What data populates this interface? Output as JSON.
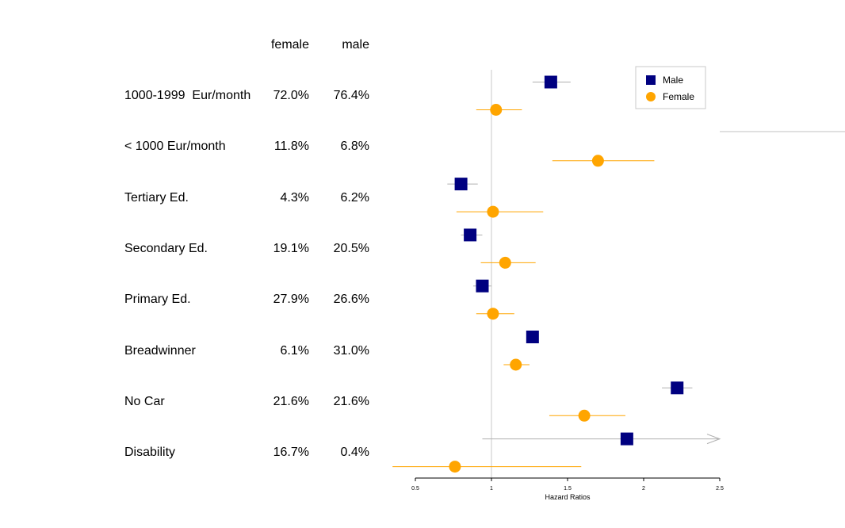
{
  "columns": {
    "female": "female",
    "male": "male"
  },
  "rows": [
    {
      "label": "1000-1999  Eur/month",
      "female_pct": "72.0%",
      "male_pct": "76.4%"
    },
    {
      "label": "< 1000 Eur/month",
      "female_pct": "11.8%",
      "male_pct": "6.8%"
    },
    {
      "label": "Tertiary Ed.",
      "female_pct": "4.3%",
      "male_pct": "6.2%"
    },
    {
      "label": "Secondary Ed.",
      "female_pct": "19.1%",
      "male_pct": "20.5%"
    },
    {
      "label": "Primary Ed.",
      "female_pct": "27.9%",
      "male_pct": "26.6%"
    },
    {
      "label": "Breadwinner",
      "female_pct": "6.1%",
      "male_pct": "31.0%"
    },
    {
      "label": "No Car",
      "female_pct": "21.6%",
      "male_pct": "21.6%"
    },
    {
      "label": "Disability",
      "female_pct": "16.7%",
      "male_pct": "0.4%"
    }
  ],
  "chart_data": {
    "type": "scatter",
    "xlabel": "Hazard Ratios",
    "xlim": [
      0.5,
      2.5
    ],
    "xticks": [
      0.5,
      1,
      1.5,
      2,
      2.5
    ],
    "xtick_labels": [
      "0.5",
      "1",
      "1.5",
      "2",
      "2.5"
    ],
    "reference_line": 1,
    "legend_position": "top-right",
    "categories": [
      "1000-1999  Eur/month",
      "< 1000 Eur/month",
      "Tertiary Ed.",
      "Secondary Ed.",
      "Primary Ed.",
      "Breadwinner",
      "No Car",
      "Disability"
    ],
    "series": [
      {
        "name": "Male",
        "marker": "square",
        "color": "#000080",
        "whisker_color": "#b0b0b0",
        "estimates": [
          1.39,
          null,
          0.8,
          0.86,
          0.94,
          1.27,
          2.22,
          1.89
        ],
        "ci_low": [
          1.27,
          null,
          0.71,
          0.8,
          0.88,
          1.24,
          2.12,
          0.94
        ],
        "ci_high": [
          1.52,
          null,
          0.91,
          0.94,
          1.0,
          1.31,
          2.32,
          2.5
        ],
        "ci_high_truncated": [
          false,
          false,
          false,
          false,
          false,
          false,
          false,
          true
        ]
      },
      {
        "name": "Female",
        "marker": "circle",
        "color": "#FFA500",
        "whisker_color": "#FFA500",
        "estimates": [
          1.03,
          1.7,
          1.01,
          1.09,
          1.01,
          1.16,
          1.61,
          0.76
        ],
        "ci_low": [
          0.9,
          1.4,
          0.77,
          0.93,
          0.9,
          1.08,
          1.38,
          0.35
        ],
        "ci_high": [
          1.2,
          2.07,
          1.34,
          1.29,
          1.15,
          1.25,
          1.88,
          1.59
        ],
        "ci_high_truncated": [
          false,
          false,
          false,
          false,
          false,
          false,
          false,
          false
        ]
      }
    ]
  }
}
